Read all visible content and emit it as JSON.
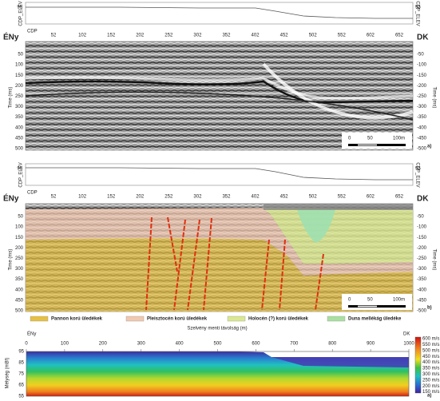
{
  "panel_a": {
    "elev_label": "CDP_ELEV",
    "elev_tick": "95",
    "left": "ÉNy",
    "right": "DK",
    "cdp_label": "CDP",
    "cdp_ticks": [
      "52",
      "102",
      "152",
      "202",
      "252",
      "302",
      "352",
      "402",
      "452",
      "502",
      "552",
      "602",
      "652"
    ],
    "time_label": "Time (ms)",
    "time_ticks_left": [
      "50",
      "100",
      "150",
      "200",
      "250",
      "300",
      "350",
      "400",
      "450",
      "500"
    ],
    "time_ticks_right": [
      "-50",
      "-100",
      "-150",
      "-200",
      "-250",
      "-300",
      "-350",
      "-400",
      "-450",
      "-500"
    ],
    "scale": [
      "0",
      "50",
      "100m"
    ],
    "tag": "a)"
  },
  "panel_b": {
    "elev_label": "CDP_ELEV",
    "elev_tick": "95",
    "left": "ÉNy",
    "right": "DK",
    "cdp_label": "CDP",
    "cdp_ticks": [
      "52",
      "102",
      "152",
      "202",
      "252",
      "302",
      "352",
      "402",
      "452",
      "502",
      "552",
      "602",
      "652"
    ],
    "time_label": "Time (ms)",
    "time_ticks_left": [
      "50",
      "100",
      "150",
      "200",
      "250",
      "300",
      "350",
      "400",
      "450",
      "500"
    ],
    "time_ticks_right": [
      "-50",
      "-100",
      "-150",
      "-200",
      "-250",
      "-300",
      "-350",
      "-400",
      "-450",
      "-500"
    ],
    "scale": [
      "0",
      "50",
      "100m"
    ],
    "tag": "b)"
  },
  "legend": [
    "Pannon korú üledékek",
    "Pleisztocén korú üledékek",
    "Holocén (?) korú üledékek",
    "Duna mellékág üledéke"
  ],
  "velocity_section": {
    "left": "ÉNy",
    "right": "DK",
    "x_label": "Szelvény menti távolság (m)",
    "y_label": "Mélység (mBf)",
    "x_ticks": [
      "0",
      "100",
      "200",
      "300",
      "400",
      "500",
      "600",
      "700",
      "800",
      "900",
      "1000"
    ],
    "y_ticks": [
      "95",
      "85",
      "75",
      "65",
      "55"
    ],
    "colorbar": [
      "600 m/s",
      "550 m/s",
      "500 m/s",
      "450 m/s",
      "400 m/s",
      "350 m/s",
      "300 m/s",
      "250 m/s",
      "200 m/s",
      "150 m/s"
    ],
    "tag": "a)"
  }
}
